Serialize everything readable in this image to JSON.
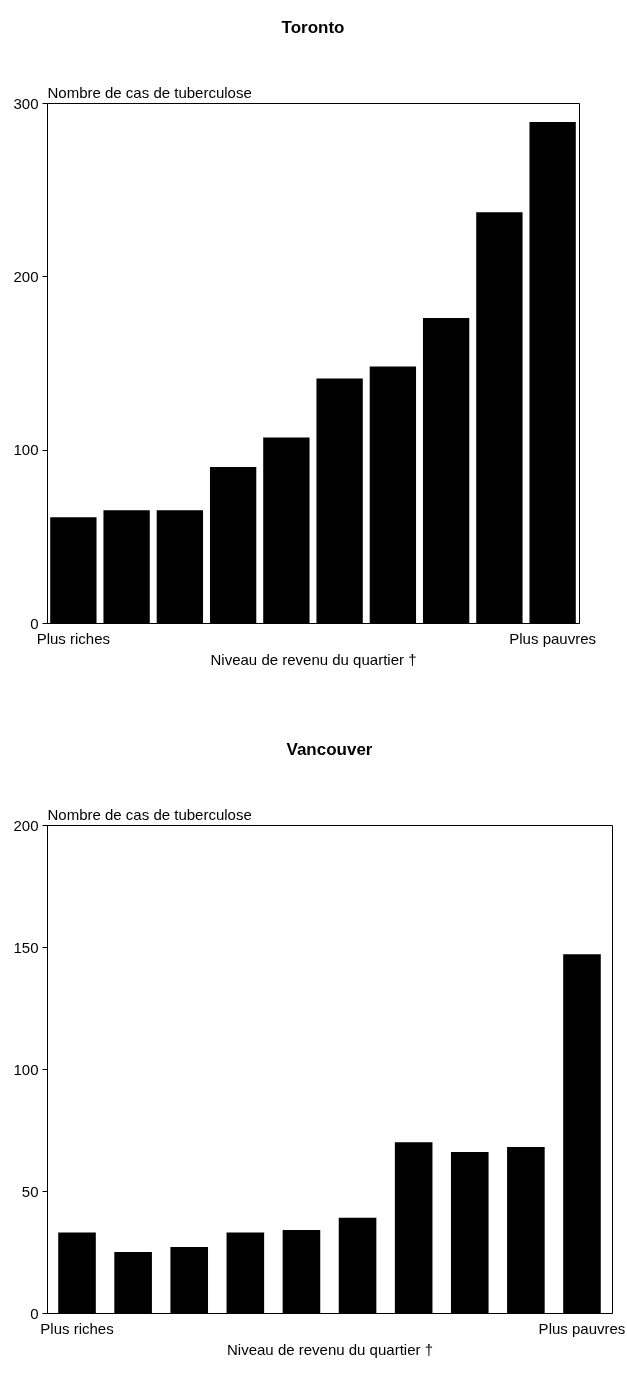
{
  "chart_data": [
    {
      "type": "bar",
      "title": "Toronto",
      "ylabel": "Nombre de cas de tuberculose",
      "xlabel": "Niveau de revenu du quartier †",
      "categories": [
        "Plus riches",
        null,
        null,
        null,
        null,
        null,
        null,
        null,
        null,
        "Plus pauvres"
      ],
      "values": [
        61,
        65,
        65,
        90,
        107,
        141,
        148,
        176,
        237,
        289
      ],
      "color": "#000000",
      "ylim": [
        0,
        300
      ],
      "yticks": [
        0,
        100,
        200,
        300
      ]
    },
    {
      "type": "bar",
      "title": "Vancouver",
      "ylabel": "Nombre de cas de tuberculose",
      "xlabel": "Niveau de revenu du quartier †",
      "categories": [
        "Plus riches",
        null,
        null,
        null,
        null,
        null,
        null,
        null,
        null,
        "Plus pauvres"
      ],
      "values": [
        33,
        25,
        27,
        33,
        34,
        39,
        70,
        66,
        68,
        147
      ],
      "color": "#000000",
      "ylim": [
        0,
        200
      ],
      "yticks": [
        0,
        50,
        100,
        150,
        200
      ]
    }
  ]
}
